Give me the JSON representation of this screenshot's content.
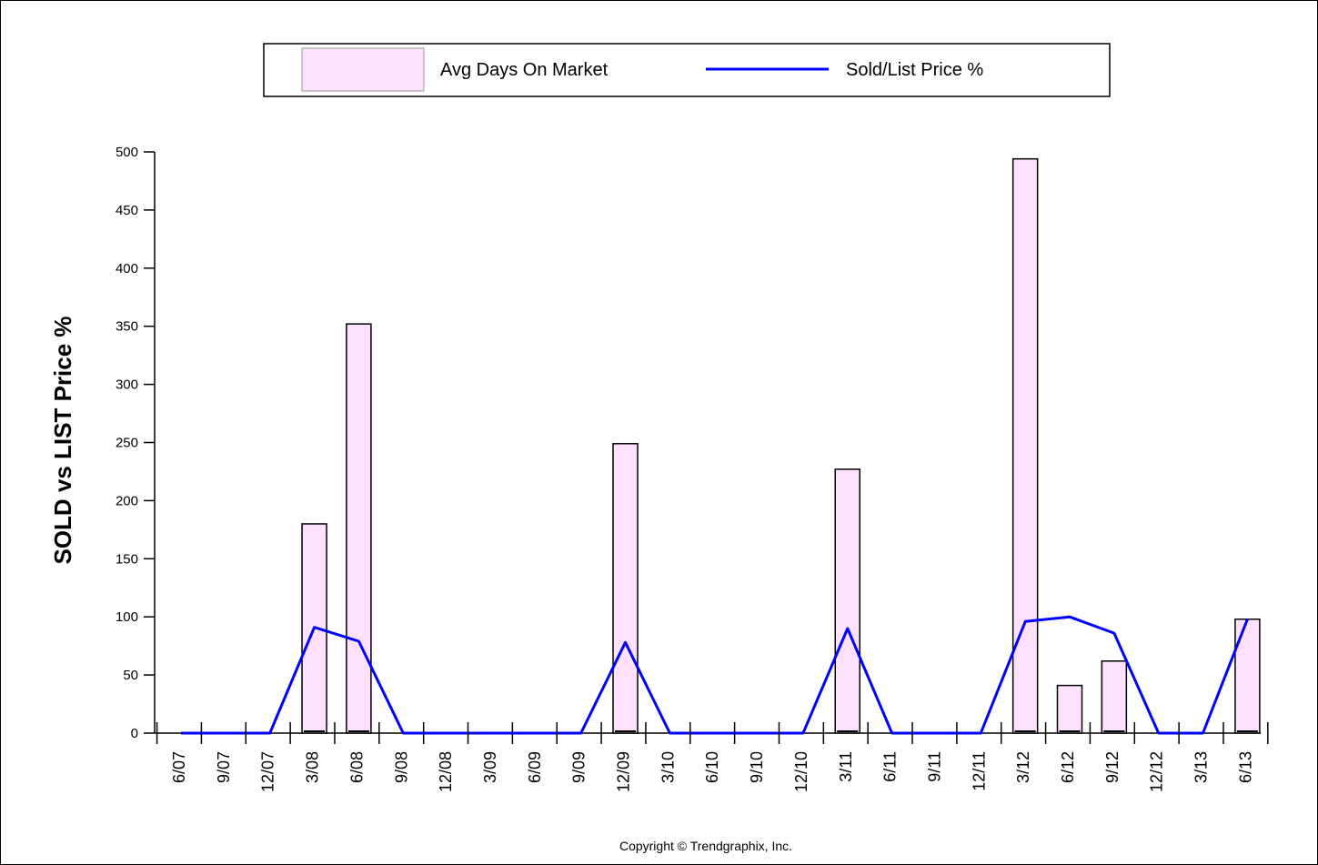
{
  "chart_data": {
    "type": "bar",
    "ylabel": "SOLD vs LIST Price %",
    "ylim": [
      0,
      500
    ],
    "yticks": [
      0,
      50,
      100,
      150,
      200,
      250,
      300,
      350,
      400,
      450,
      500
    ],
    "grid": false,
    "legend_position": "top",
    "categories": [
      "6/07",
      "9/07",
      "12/07",
      "3/08",
      "6/08",
      "9/08",
      "12/08",
      "3/09",
      "6/09",
      "9/09",
      "12/09",
      "3/10",
      "6/10",
      "9/10",
      "12/10",
      "3/11",
      "6/11",
      "9/11",
      "12/11",
      "3/12",
      "6/12",
      "9/12",
      "12/12",
      "3/13",
      "6/13"
    ],
    "series": [
      {
        "name": "Avg Days On Market",
        "kind": "bar",
        "color": "#ffe0ff",
        "values": [
          0,
          0,
          0,
          180,
          352,
          0,
          0,
          0,
          0,
          0,
          249,
          0,
          0,
          0,
          0,
          227,
          0,
          0,
          0,
          494,
          41,
          62,
          0,
          0,
          98
        ]
      },
      {
        "name": "Sold/List Price %",
        "kind": "line",
        "color": "#0000ff",
        "values": [
          0,
          0,
          0,
          91,
          79,
          0,
          0,
          0,
          0,
          0,
          78,
          0,
          0,
          0,
          0,
          90,
          0,
          0,
          0,
          96,
          100,
          86,
          0,
          0,
          98
        ]
      }
    ]
  },
  "copyright": "Copyright © Trendgraphix, Inc."
}
